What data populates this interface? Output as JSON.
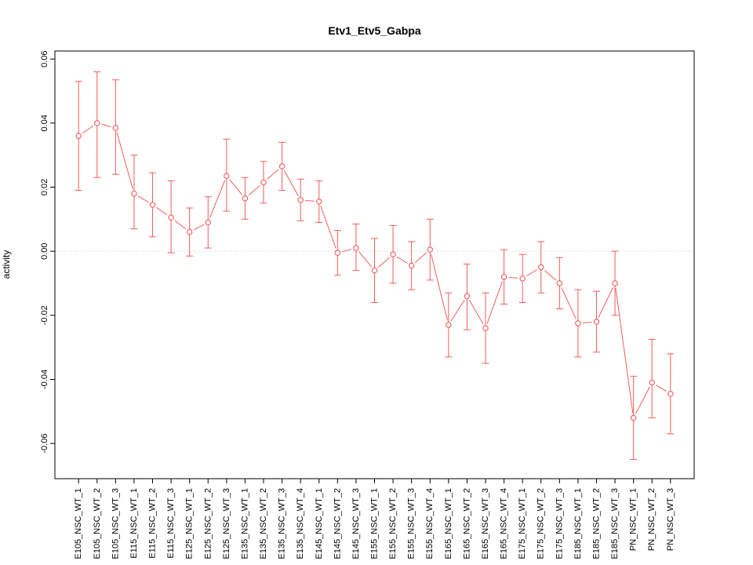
{
  "window": {
    "background": "#ffffff"
  },
  "chart_data": {
    "type": "scatter",
    "title": "Etv1_Etv5_Gabpa",
    "xlabel": "",
    "ylabel": "activity",
    "legend": "none",
    "grid": "dotted horizontal line at y=0 only",
    "ylim": [
      -0.071,
      0.0625
    ],
    "yticks": [
      -0.06,
      -0.04,
      -0.02,
      0,
      0.02,
      0.04,
      0.06
    ],
    "ytick_labels": [
      "-0.06",
      "-0.04",
      "-0.02",
      "0.00",
      "0.02",
      "0.04",
      "0.06"
    ],
    "series_color": "#f25c5c",
    "zero_line_color": "#c8c8c8",
    "axis_color": "#000000",
    "marker": "open-circle",
    "error_bars": "vertical with caps, values are lower/upper bounds",
    "categories": [
      "E105_NSC_WT_1",
      "E105_NSC_WT_2",
      "E105_NSC_WT_3",
      "E115_NSC_WT_1",
      "E115_NSC_WT_2",
      "E115_NSC_WT_3",
      "E125_NSC_WT_1",
      "E125_NSC_WT_2",
      "E125_NSC_WT_3",
      "E135_NSC_WT_1",
      "E135_NSC_WT_2",
      "E135_NSC_WT_3",
      "E135_NSC_WT_4",
      "E145_NSC_WT_1",
      "E145_NSC_WT_2",
      "E145_NSC_WT_3",
      "E155_NSC_WT_1",
      "E155_NSC_WT_2",
      "E155_NSC_WT_3",
      "E155_NSC_WT_4",
      "E165_NSC_WT_1",
      "E165_NSC_WT_2",
      "E165_NSC_WT_3",
      "E165_NSC_WT_4",
      "E175_NSC_WT_1",
      "E175_NSC_WT_2",
      "E175_NSC_WT_3",
      "E185_NSC_WT_1",
      "E185_NSC_WT_2",
      "E185_NSC_WT_3",
      "PN_NSC_WT_1",
      "PN_NSC_WT_2",
      "PN_NSC_WT_3"
    ],
    "values": [
      0.036,
      0.04,
      0.0385,
      0.018,
      0.0145,
      0.0105,
      0.006,
      0.009,
      0.0235,
      0.0165,
      0.0215,
      0.0265,
      0.016,
      0.0155,
      -0.0005,
      0.001,
      -0.006,
      -0.001,
      -0.0045,
      0.0005,
      -0.023,
      -0.014,
      -0.024,
      -0.008,
      -0.0085,
      -0.005,
      -0.01,
      -0.0225,
      -0.022,
      -0.01,
      -0.052,
      -0.041,
      -0.0445
    ],
    "lower": [
      0.019,
      0.023,
      0.024,
      0.007,
      0.0045,
      -0.0005,
      -0.0015,
      0.001,
      0.0125,
      0.01,
      0.015,
      0.019,
      0.0095,
      0.009,
      -0.0075,
      -0.006,
      -0.016,
      -0.01,
      -0.012,
      -0.009,
      -0.033,
      -0.0245,
      -0.035,
      -0.0165,
      -0.016,
      -0.013,
      -0.018,
      -0.033,
      -0.0315,
      -0.02,
      -0.065,
      -0.052,
      -0.057
    ],
    "upper": [
      0.053,
      0.056,
      0.0535,
      0.03,
      0.0245,
      0.022,
      0.0135,
      0.017,
      0.035,
      0.023,
      0.028,
      0.034,
      0.0225,
      0.022,
      0.0065,
      0.0085,
      0.004,
      0.008,
      0.003,
      0.01,
      -0.013,
      -0.004,
      -0.013,
      0.0005,
      -0.001,
      0.003,
      -0.002,
      -0.012,
      -0.0125,
      0.0,
      -0.039,
      -0.0275,
      -0.032
    ]
  }
}
